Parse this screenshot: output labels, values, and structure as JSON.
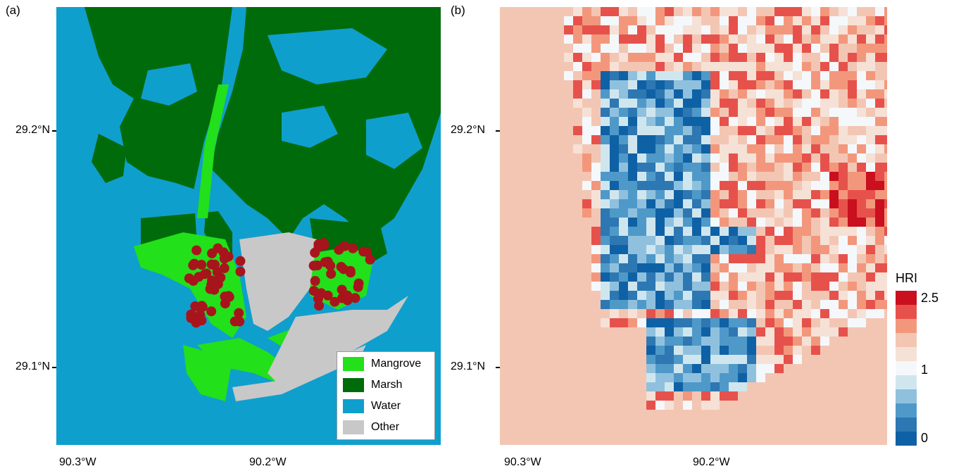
{
  "panel_a": {
    "label": "(a)",
    "y_ticks": [
      "29.2°N",
      "29.1°N"
    ],
    "x_ticks": [
      "90.3°W",
      "90.2°W"
    ],
    "legend": [
      {
        "label": "Mangrove",
        "color": "#22e01a"
      },
      {
        "label": "Marsh",
        "color": "#006b0a"
      },
      {
        "label": "Water",
        "color": "#0f9fcd"
      },
      {
        "label": "Other",
        "color": "#c8c8c8"
      }
    ],
    "point_color": "#a8141c"
  },
  "panel_b": {
    "label": "(b)",
    "y_ticks": [
      "29.2°N",
      "29.1°N"
    ],
    "x_ticks": [
      "90.3°W",
      "90.2°W"
    ],
    "colorbar": {
      "title": "HRI",
      "values": [
        "2.5",
        "1",
        "0"
      ],
      "colors": [
        "#ca0f1f",
        "#e6524b",
        "#f3977c",
        "#f3c6b4",
        "#f6e1d6",
        "#f4f8fb",
        "#d0e6ef",
        "#8fc1de",
        "#4f99c9",
        "#2d77b3",
        "#0f61a5"
      ]
    }
  }
}
